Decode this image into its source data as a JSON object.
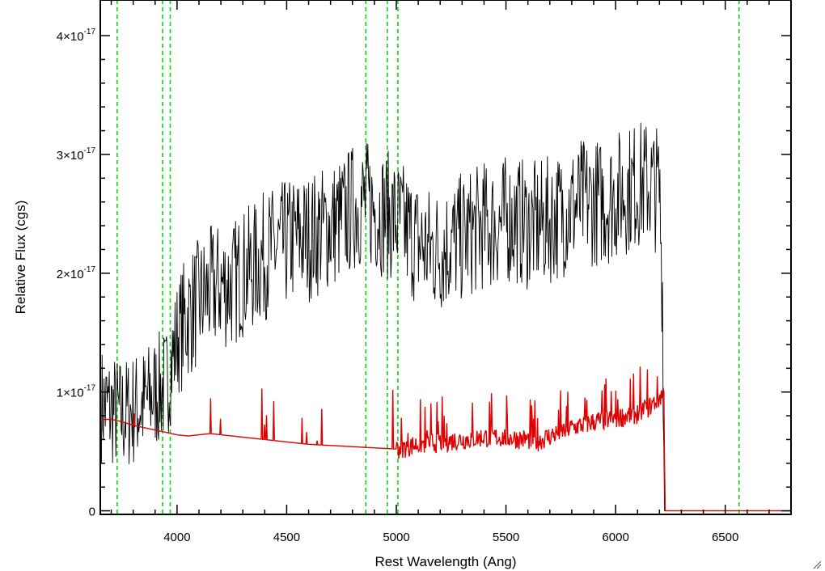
{
  "chart_data": {
    "type": "line",
    "title": "",
    "xlabel": "Rest Wavelength (Ang)",
    "ylabel": "Relative Flux (cgs)",
    "xlim": [
      3650,
      6800
    ],
    "ylim": [
      -0.03,
      4.3
    ],
    "y_scale_note": "×10^-17",
    "x_ticks": [
      4000,
      4500,
      5000,
      5500,
      6000,
      6500
    ],
    "y_ticks": [
      {
        "value": 0,
        "mantissa": "0",
        "exponent": ""
      },
      {
        "value": 1,
        "mantissa": "1×10",
        "exponent": "-17"
      },
      {
        "value": 2,
        "mantissa": "2×10",
        "exponent": "-17"
      },
      {
        "value": 3,
        "mantissa": "3×10",
        "exponent": "-17"
      },
      {
        "value": 4,
        "mantissa": "4×10",
        "exponent": "-17"
      }
    ],
    "reference_lines_x": [
      3727,
      3934,
      3969,
      4861,
      4959,
      5007,
      6563
    ],
    "series": [
      {
        "color": "#000000",
        "x": [
          3655,
          3700,
          3750,
          3800,
          3850,
          3900,
          3950,
          4000,
          4050,
          4100,
          4150,
          4200,
          4250,
          4300,
          4350,
          4400,
          4450,
          4500,
          4550,
          4600,
          4650,
          4700,
          4750,
          4800,
          4850,
          4900,
          4950,
          5000,
          5050,
          5100,
          5150,
          5200,
          5250,
          5300,
          5350,
          5400,
          5450,
          5500,
          5550,
          5600,
          5650,
          5700,
          5750,
          5800,
          5850,
          5900,
          5950,
          6000,
          6050,
          6100,
          6150,
          6200,
          6215,
          6222,
          6300,
          6500,
          6800
        ],
        "values": [
          0.9,
          0.85,
          0.8,
          0.85,
          0.9,
          1.0,
          1.05,
          1.45,
          1.65,
          1.75,
          1.85,
          1.9,
          1.9,
          2.0,
          2.05,
          2.15,
          2.2,
          2.25,
          2.3,
          2.3,
          2.35,
          2.4,
          2.45,
          2.55,
          2.6,
          2.55,
          2.5,
          2.45,
          2.35,
          2.25,
          2.2,
          2.2,
          2.25,
          2.3,
          2.35,
          2.4,
          2.4,
          2.45,
          2.45,
          2.4,
          2.4,
          2.45,
          2.5,
          2.55,
          2.6,
          2.6,
          2.6,
          2.65,
          2.7,
          2.75,
          2.75,
          2.7,
          1.8,
          0.0,
          0.0,
          0.0,
          0.0
        ]
      },
      {
        "color": "#e00000",
        "x": [
          3655,
          3700,
          3750,
          3800,
          3850,
          3900,
          3950,
          4000,
          4050,
          4100,
          4150,
          4200,
          4300,
          4400,
          4500,
          4600,
          4700,
          4800,
          4900,
          5000,
          5050,
          5100,
          5200,
          5300,
          5400,
          5500,
          5600,
          5650,
          5700,
          5800,
          5900,
          6000,
          6100,
          6150,
          6200,
          6220,
          6225,
          6300,
          6500,
          6800
        ],
        "values": [
          0.77,
          0.77,
          0.75,
          0.72,
          0.7,
          0.68,
          0.66,
          0.64,
          0.63,
          0.64,
          0.65,
          0.64,
          0.62,
          0.6,
          0.58,
          0.56,
          0.55,
          0.54,
          0.53,
          0.52,
          0.54,
          0.56,
          0.58,
          0.6,
          0.62,
          0.62,
          0.6,
          0.59,
          0.63,
          0.7,
          0.75,
          0.78,
          0.82,
          0.87,
          0.95,
          1.0,
          0.0,
          0.0,
          0.0,
          0.0
        ]
      }
    ],
    "colors": {
      "reference_line": "#00dd00",
      "spectrum": "#000000",
      "model": "#e00000"
    }
  }
}
